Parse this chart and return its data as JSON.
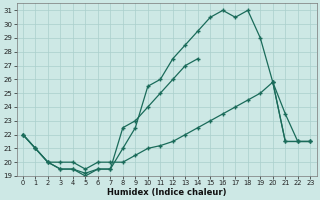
{
  "xlabel": "Humidex (Indice chaleur)",
  "bg_color": "#cde8e5",
  "grid_color": "#aacfcc",
  "line_color": "#1a6b5a",
  "xlim": [
    -0.5,
    23.5
  ],
  "ylim": [
    19,
    31.5
  ],
  "line1_x": [
    0,
    1,
    2,
    3,
    4,
    5,
    6,
    7,
    8,
    9,
    10,
    11,
    12,
    13,
    14,
    15,
    16,
    17,
    18,
    19,
    20,
    21,
    22,
    23
  ],
  "line1_y": [
    22,
    21,
    20,
    19.5,
    19.5,
    19,
    19.5,
    19.5,
    21,
    22.5,
    25.5,
    26,
    27.5,
    28.5,
    29.5,
    30.5,
    31,
    30.5,
    31,
    29,
    25.8,
    21.5,
    21.5,
    21.5
  ],
  "line2_x": [
    0,
    1,
    2,
    3,
    4,
    5,
    6,
    7,
    8,
    9,
    10,
    11,
    12,
    13,
    14,
    15,
    16,
    17,
    18,
    19,
    20,
    21,
    22,
    23
  ],
  "line2_y": [
    22,
    21,
    20,
    19.5,
    19.5,
    19.2,
    19.5,
    20,
    22.5,
    23,
    24,
    null,
    null,
    null,
    null,
    null,
    null,
    null,
    null,
    null,
    25.8,
    23.5,
    21.5,
    21.5
  ],
  "line3_x": [
    0,
    1,
    2,
    3,
    4,
    5,
    6,
    7,
    8,
    9,
    10,
    11,
    12,
    13,
    14,
    15,
    16,
    17,
    18,
    19,
    20,
    21,
    22,
    23
  ],
  "line3_y": [
    22,
    21,
    20,
    20,
    20,
    19.5,
    20,
    20,
    20,
    20.5,
    21,
    21.2,
    21.5,
    22,
    22.5,
    23,
    23.5,
    24,
    24.5,
    25,
    25.8,
    21.5,
    21.5,
    21.5
  ]
}
